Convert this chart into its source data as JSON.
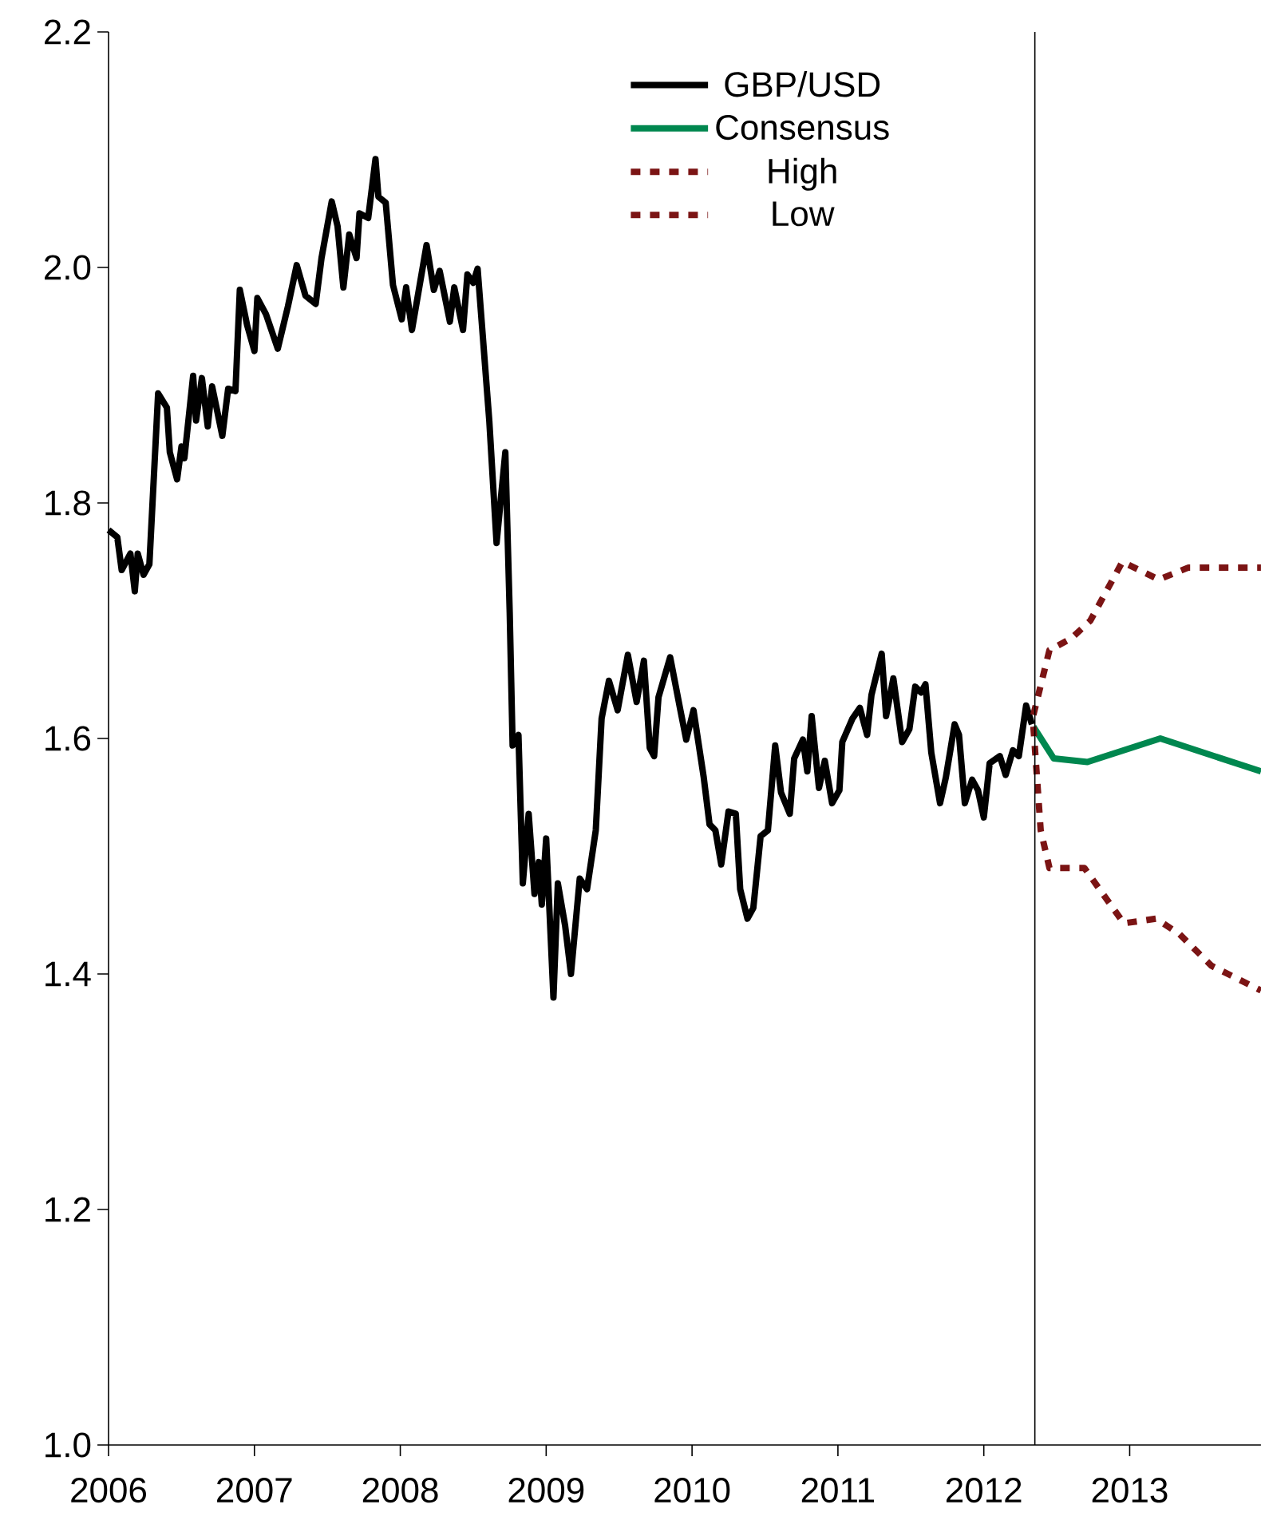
{
  "chart_data": {
    "type": "line",
    "xlim": [
      2006,
      2013.9
    ],
    "xticks": [
      2006,
      2007,
      2008,
      2009,
      2010,
      2011,
      2012,
      2013
    ],
    "ylim": [
      1.0,
      2.2
    ],
    "yticks": [
      {
        "value": 1.0,
        "label": "1.0"
      },
      {
        "value": 1.2,
        "label": "1.2"
      },
      {
        "value": 1.4,
        "label": "1.4"
      },
      {
        "value": 1.6,
        "label": "1.6"
      },
      {
        "value": 1.8,
        "label": "1.8"
      },
      {
        "value": 2.0,
        "label": "2.0"
      },
      {
        "value": 2.2,
        "label": "2.2"
      }
    ],
    "legend": "top right",
    "grid": false,
    "line_style": "solid",
    "ref_lines": [
      {
        "axis": "x",
        "value": 2012.35,
        "color": "#000000"
      }
    ],
    "series": [
      {
        "name": "GBP/USD",
        "color": "#000000",
        "x": [
          2006.0,
          2006.06,
          2006.09,
          2006.15,
          2006.18,
          2006.2,
          2006.24,
          2006.28,
          2006.34,
          2006.4,
          2006.42,
          2006.47,
          2006.5,
          2006.52,
          2006.58,
          2006.6,
          2006.64,
          2006.68,
          2006.71,
          2006.78,
          2006.82,
          2006.87,
          2006.9,
          2006.95,
          2007.0,
          2007.02,
          2007.08,
          2007.16,
          2007.23,
          2007.29,
          2007.35,
          2007.42,
          2007.46,
          2007.53,
          2007.57,
          2007.61,
          2007.65,
          2007.7,
          2007.72,
          2007.78,
          2007.83,
          2007.85,
          2007.9,
          2007.95,
          2008.01,
          2008.04,
          2008.08,
          2008.18,
          2008.23,
          2008.27,
          2008.34,
          2008.37,
          2008.43,
          2008.46,
          2008.5,
          2008.53,
          2008.61,
          2008.66,
          2008.72,
          2008.75,
          2008.77,
          2008.81,
          2008.84,
          2008.88,
          2008.92,
          2008.95,
          2008.97,
          2009.0,
          2009.05,
          2009.08,
          2009.13,
          2009.17,
          2009.23,
          2009.28,
          2009.34,
          2009.38,
          2009.43,
          2009.49,
          2009.56,
          2009.62,
          2009.67,
          2009.71,
          2009.74,
          2009.77,
          2009.85,
          2009.92,
          2009.96,
          2010.01,
          2010.08,
          2010.12,
          2010.16,
          2010.2,
          2010.25,
          2010.3,
          2010.33,
          2010.38,
          2010.42,
          2010.47,
          2010.52,
          2010.57,
          2010.61,
          2010.67,
          2010.7,
          2010.76,
          2010.79,
          2010.82,
          2010.87,
          2010.91,
          2010.96,
          2011.01,
          2011.03,
          2011.1,
          2011.15,
          2011.2,
          2011.23,
          2011.3,
          2011.33,
          2011.38,
          2011.44,
          2011.49,
          2011.53,
          2011.57,
          2011.6,
          2011.64,
          2011.7,
          2011.74,
          2011.8,
          2011.83,
          2011.87,
          2011.92,
          2011.96,
          2012.0,
          2012.04,
          2012.11,
          2012.15,
          2012.2,
          2012.24,
          2012.29,
          2012.33
        ],
        "values": [
          1.777,
          1.771,
          1.743,
          1.757,
          1.725,
          1.757,
          1.739,
          1.748,
          1.893,
          1.881,
          1.843,
          1.82,
          1.848,
          1.838,
          1.908,
          1.87,
          1.906,
          1.865,
          1.899,
          1.857,
          1.897,
          1.895,
          1.981,
          1.951,
          1.929,
          1.974,
          1.96,
          1.931,
          1.967,
          2.002,
          1.976,
          1.969,
          2.008,
          2.056,
          2.035,
          1.983,
          2.028,
          2.008,
          2.046,
          2.042,
          2.092,
          2.06,
          2.055,
          1.985,
          1.956,
          1.983,
          1.947,
          2.019,
          1.981,
          1.997,
          1.954,
          1.983,
          1.947,
          1.994,
          1.987,
          1.999,
          1.87,
          1.766,
          1.843,
          1.707,
          1.594,
          1.603,
          1.477,
          1.536,
          1.468,
          1.495,
          1.459,
          1.515,
          1.38,
          1.477,
          1.441,
          1.4,
          1.481,
          1.472,
          1.522,
          1.617,
          1.649,
          1.624,
          1.671,
          1.631,
          1.666,
          1.592,
          1.585,
          1.635,
          1.669,
          1.624,
          1.599,
          1.624,
          1.567,
          1.527,
          1.522,
          1.493,
          1.538,
          1.536,
          1.472,
          1.447,
          1.456,
          1.517,
          1.522,
          1.594,
          1.554,
          1.536,
          1.583,
          1.599,
          1.572,
          1.619,
          1.558,
          1.581,
          1.545,
          1.556,
          1.597,
          1.617,
          1.626,
          1.603,
          1.637,
          1.672,
          1.619,
          1.651,
          1.597,
          1.608,
          1.644,
          1.639,
          1.646,
          1.588,
          1.545,
          1.567,
          1.612,
          1.603,
          1.545,
          1.565,
          1.556,
          1.533,
          1.579,
          1.585,
          1.569,
          1.59,
          1.585,
          1.628,
          1.612
        ]
      },
      {
        "name": "Consensus",
        "color": "#00874f",
        "x": [
          2012.34,
          2012.48,
          2012.71,
          2013.21,
          2013.9
        ],
        "values": [
          1.61,
          1.583,
          1.58,
          1.6,
          1.572
        ]
      },
      {
        "name": "High",
        "color": "#7b1414",
        "line_style": "dotted",
        "x": [
          2012.34,
          2012.45,
          2012.6,
          2012.73,
          2012.95,
          2013.2,
          2013.4,
          2013.9
        ],
        "values": [
          1.62,
          1.675,
          1.685,
          1.7,
          1.75,
          1.735,
          1.745,
          1.745
        ]
      },
      {
        "name": "Low",
        "color": "#7b1414",
        "line_style": "dotted",
        "x": [
          2012.34,
          2012.39,
          2012.45,
          2012.69,
          2012.96,
          2013.18,
          2013.34,
          2013.56,
          2013.9
        ],
        "values": [
          1.61,
          1.522,
          1.49,
          1.49,
          1.443,
          1.447,
          1.434,
          1.407,
          1.386
        ]
      }
    ]
  }
}
